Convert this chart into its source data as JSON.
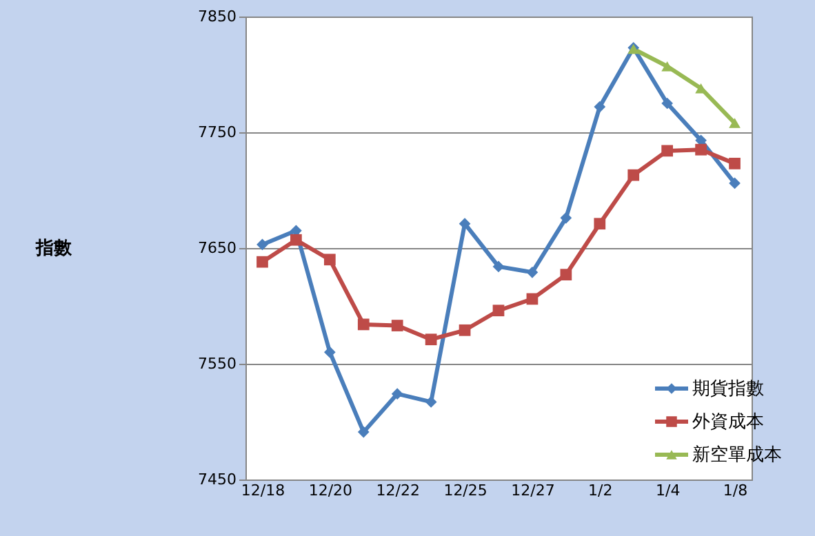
{
  "chart_data": {
    "type": "line",
    "annotations": [
      "指數"
    ],
    "categories": [
      "12/18",
      null,
      "12/20",
      null,
      "12/22",
      null,
      "12/25",
      null,
      "12/27",
      null,
      "1/2",
      null,
      "1/4",
      null,
      "1/8"
    ],
    "series": [
      {
        "name": "期貨指數",
        "color": "#4a7ebb",
        "marker": "diamond",
        "values": [
          7653,
          7665,
          7560,
          7491,
          7524,
          7517,
          7671,
          7634,
          7629,
          7676,
          7772,
          7823,
          7775,
          7743,
          7706
        ]
      },
      {
        "name": "外資成本",
        "color": "#be4b48",
        "marker": "square",
        "values": [
          7638,
          7657,
          7640,
          7584,
          7583,
          7571,
          7579,
          7596,
          7606,
          7627,
          7671,
          7713,
          7734,
          7735,
          7723
        ]
      },
      {
        "name": "新空單成本",
        "color": "#98b954",
        "marker": "triangle",
        "values": [
          null,
          null,
          null,
          null,
          null,
          null,
          null,
          null,
          null,
          null,
          null,
          7822,
          7807,
          7788,
          7758
        ]
      }
    ],
    "ylim": [
      7450,
      7850
    ],
    "yticks": [
      7450,
      7550,
      7650,
      7750,
      7850
    ],
    "grid": "y",
    "legend": "bottom right",
    "line_style": "solid"
  }
}
